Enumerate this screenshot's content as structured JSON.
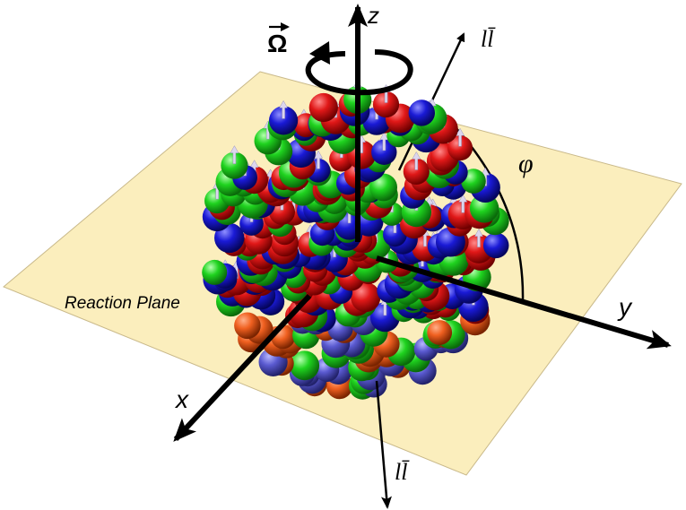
{
  "labels": {
    "z_axis": "z",
    "y_axis": "y",
    "x_axis": "x",
    "omega": "Ω",
    "phi": "φ",
    "dilepton_top": "ll̄",
    "dilepton_bottom": "ll̄",
    "reaction_plane": "Reaction Plane"
  },
  "colors": {
    "plane_fill": "#fbeebd",
    "plane_stroke": "#c9b98a",
    "sphere_red": "#e01818",
    "sphere_green": "#1fd31f",
    "sphere_blue": "#1a1ad6",
    "sphere_orange": "#f06020",
    "sphere_violet": "#5a5ad0",
    "spin_arrow": "#dcd6ee",
    "axis": "#000000"
  }
}
